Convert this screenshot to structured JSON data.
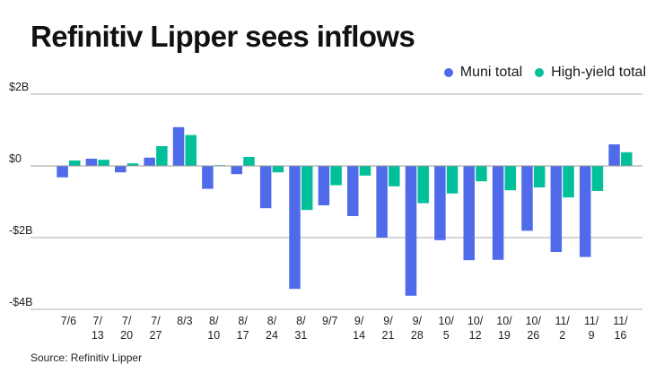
{
  "chart_data": {
    "type": "bar",
    "title": "Refinitiv Lipper sees inflows",
    "xlabel": "",
    "ylabel": "",
    "ylim": [
      -4,
      2
    ],
    "yunit": "billions USD",
    "yticks": [
      {
        "value": 2,
        "label": "$2B"
      },
      {
        "value": 0,
        "label": "$0"
      },
      {
        "value": -2,
        "label": "-$2B"
      },
      {
        "value": -4,
        "label": "-$4B"
      }
    ],
    "grid": true,
    "legend_position": "top-right",
    "categories": [
      "7/6",
      "7/13",
      "7/20",
      "7/27",
      "8/3",
      "8/10",
      "8/17",
      "8/24",
      "8/31",
      "9/7",
      "9/14",
      "9/21",
      "9/28",
      "10/5",
      "10/12",
      "10/19",
      "10/26",
      "11/2",
      "11/9",
      "11/16"
    ],
    "category_labels": [
      [
        "7/6"
      ],
      [
        "7/",
        "13"
      ],
      [
        "7/",
        "20"
      ],
      [
        "7/",
        "27"
      ],
      [
        "8/3"
      ],
      [
        "8/",
        "10"
      ],
      [
        "8/",
        "17"
      ],
      [
        "8/",
        "24"
      ],
      [
        "8/",
        "31"
      ],
      [
        "9/7"
      ],
      [
        "9/",
        "14"
      ],
      [
        "9/",
        "21"
      ],
      [
        "9/",
        "28"
      ],
      [
        "10/",
        "5"
      ],
      [
        "10/",
        "12"
      ],
      [
        "10/",
        "19"
      ],
      [
        "10/",
        "26"
      ],
      [
        "11/",
        "2"
      ],
      [
        "11/",
        "9"
      ],
      [
        "11/",
        "16"
      ]
    ],
    "series": [
      {
        "name": "Muni total",
        "color": "#4f6bea",
        "values": [
          -0.32,
          0.2,
          -0.18,
          0.23,
          1.08,
          -0.64,
          -0.23,
          -1.18,
          -3.43,
          -1.1,
          -1.4,
          -2.0,
          -3.62,
          -2.07,
          -2.63,
          -2.62,
          -1.81,
          -2.4,
          -2.54,
          0.6
        ]
      },
      {
        "name": "High-yield total",
        "color": "#00c09a",
        "values": [
          0.15,
          0.17,
          0.07,
          0.55,
          0.86,
          0.02,
          0.25,
          -0.18,
          -1.23,
          -0.54,
          -0.27,
          -0.57,
          -1.04,
          -0.77,
          -0.43,
          -0.68,
          -0.6,
          -0.88,
          -0.7,
          0.38
        ]
      }
    ],
    "source": "Source: Refinitiv Lipper"
  }
}
